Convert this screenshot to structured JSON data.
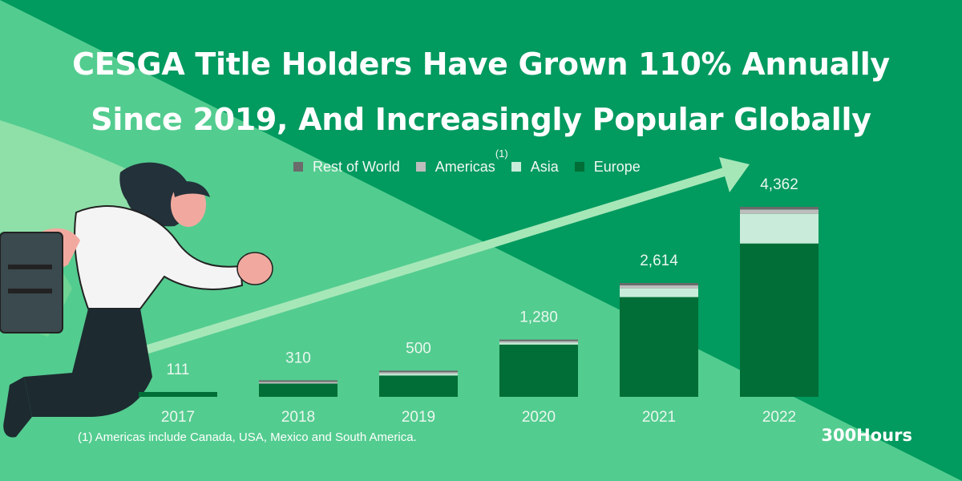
{
  "title_line1": "CESGA Title Holders Have Grown 110% Annually",
  "title_line2": "Since 2019, And Increasingly Popular Globally",
  "legend": [
    {
      "label": "Rest of World",
      "color": "#6b6b6b",
      "sup": ""
    },
    {
      "label": "Americas",
      "color": "#bdbdbd",
      "sup": "(1)"
    },
    {
      "label": "Asia",
      "color": "#c8ecd9",
      "sup": ""
    },
    {
      "label": "Europe",
      "color": "#006e36",
      "sup": ""
    }
  ],
  "footnote": "(1) Americas include Canada, USA, Mexico and South America.",
  "brand": "300Hours",
  "chart_data": {
    "type": "bar",
    "stacked": true,
    "categories": [
      "2017",
      "2018",
      "2019",
      "2020",
      "2021",
      "2022"
    ],
    "totals_labels": [
      "111",
      "310",
      "500",
      "1,280",
      "2,614",
      "4,362"
    ],
    "series": [
      {
        "name": "Europe",
        "values": [
          111,
          305,
          490,
          1200,
          2290,
          3520
        ]
      },
      {
        "name": "Asia",
        "values": [
          0,
          0,
          5,
          40,
          200,
          680
        ]
      },
      {
        "name": "Americas",
        "values": [
          0,
          2,
          2,
          20,
          70,
          100
        ]
      },
      {
        "name": "Rest of World",
        "values": [
          0,
          3,
          3,
          20,
          54,
          62
        ]
      }
    ],
    "title": "CESGA Title Holders",
    "xlabel": "",
    "ylabel": "",
    "ylim": [
      0,
      4800
    ],
    "grid": false,
    "legend_position": "top-center"
  }
}
